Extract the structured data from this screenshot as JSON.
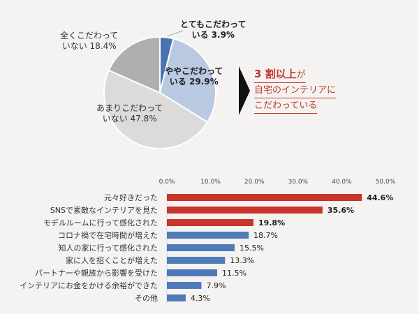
{
  "chart_data": [
    {
      "type": "pie",
      "slices": [
        {
          "label": "とてもこだわっている",
          "value": 3.9,
          "color": "#4a73b1"
        },
        {
          "label": "ややこだわっている",
          "value": 29.9,
          "color": "#b9c9e1"
        },
        {
          "label": "あまりこだわっていない",
          "value": 47.8,
          "color": "#dcdbd9"
        },
        {
          "label": "全くこだわっていない",
          "value": 18.4,
          "color": "#afafae"
        }
      ],
      "slice_labels": [
        {
          "l1": "とてもこだわって",
          "l2": "いる 3.9%"
        },
        {
          "l1": "ややこだわって",
          "l2": "いる 29.9%"
        },
        {
          "l1": "あまりこだわって",
          "l2": "いない 47.8%"
        },
        {
          "l1": "全くこだわって",
          "l2": "いない 18.4%"
        }
      ]
    },
    {
      "type": "bar",
      "orientation": "horizontal",
      "categories": [
        "元々好きだった",
        "SNSで素敵なインテリアを見た",
        "モデルルームに行って感化された",
        "コロナ禍で在宅時間が増えた",
        "知人の家に行って感化された",
        "家に人を招くことが増えた",
        "パートナーや親族から影響を受けた",
        "インテリアにお金をかける余裕ができた",
        "その他"
      ],
      "values": [
        44.6,
        35.6,
        19.8,
        18.7,
        15.5,
        13.3,
        11.5,
        7.9,
        4.3
      ],
      "value_labels": [
        "44.6%",
        "35.6%",
        "19.8%",
        "18.7%",
        "15.5%",
        "13.3%",
        "11.5%",
        "7.9%",
        "4.3%"
      ],
      "highlight_count": 3,
      "colors": {
        "highlight": "#c9342c",
        "normal": "#4f7ab8"
      },
      "xlim": [
        0,
        50
      ],
      "xticks": [
        "0.0%",
        "10.0%",
        "20.0%",
        "30.0%",
        "40.0%",
        "50.0%"
      ]
    }
  ],
  "callout": {
    "big": "3 割以上",
    "small": "が",
    "line2": "自宅のインテリアに",
    "line3": "こだわっている"
  }
}
